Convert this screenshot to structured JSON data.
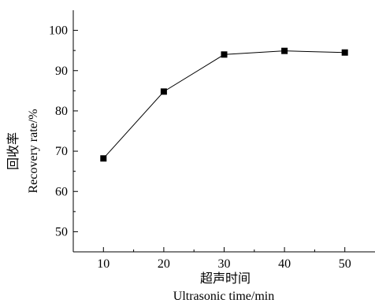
{
  "chart_data": {
    "type": "line",
    "x": [
      10,
      20,
      30,
      40,
      50
    ],
    "series": [
      {
        "values": [
          68.2,
          84.8,
          94.0,
          94.9,
          94.5
        ],
        "color": "#000000",
        "marker": "square"
      }
    ],
    "xlabel_cn": "超声时间",
    "xlabel": "Ultrasonic time/min",
    "ylabel_cn": "回收率",
    "ylabel": "Recovery rate/%",
    "xlim": [
      5,
      55
    ],
    "ylim": [
      45,
      105
    ],
    "xticks": [
      "10",
      "20",
      "30",
      "40",
      "50"
    ],
    "yticks": [
      "50",
      "60",
      "70",
      "80",
      "90",
      "100"
    ],
    "grid": false,
    "legend": "none"
  }
}
